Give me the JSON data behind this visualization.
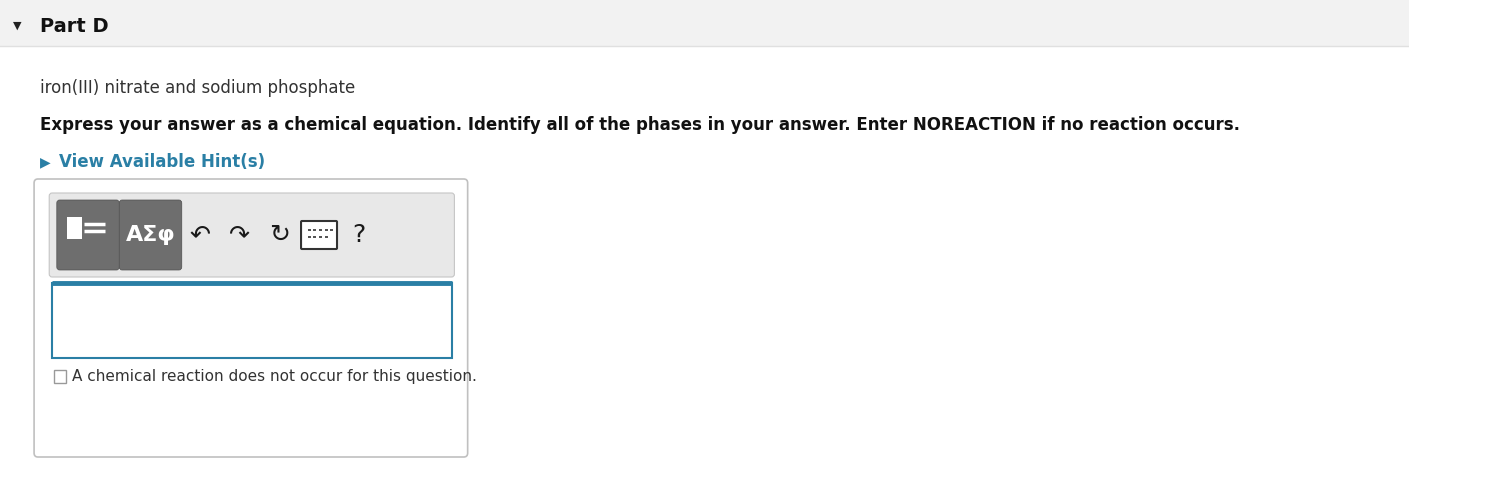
{
  "main_bg": "#ffffff",
  "header_bg": "#f2f2f2",
  "header_border": "#e0e0e0",
  "part_label": "Part D",
  "arrow_char": "▼",
  "subtitle": "iron(III) nitrate and sodium phosphate",
  "instruction": "Express your answer as a chemical equation. Identify all of the phases in your answer. Enter NOREACTION if no reaction occurs.",
  "hint_arrow": "▶",
  "hint_text": "View Available Hint(s)",
  "hint_color": "#2a7fa5",
  "input_border_color": "#2a7fa5",
  "checkbox_label": "A chemical reaction does not occur for this question.",
  "box_border": "#cccccc",
  "toolbar_bg": "#e8e8e8",
  "toolbar_border": "#c8c8c8",
  "btn_bg": "#737373",
  "btn_bg2": "#787878",
  "btn_border": "#555555",
  "icon_color": "#222222",
  "icon_undo": "↶",
  "icon_redo": "↷",
  "icon_refresh": "↻",
  "icon_help": "?"
}
